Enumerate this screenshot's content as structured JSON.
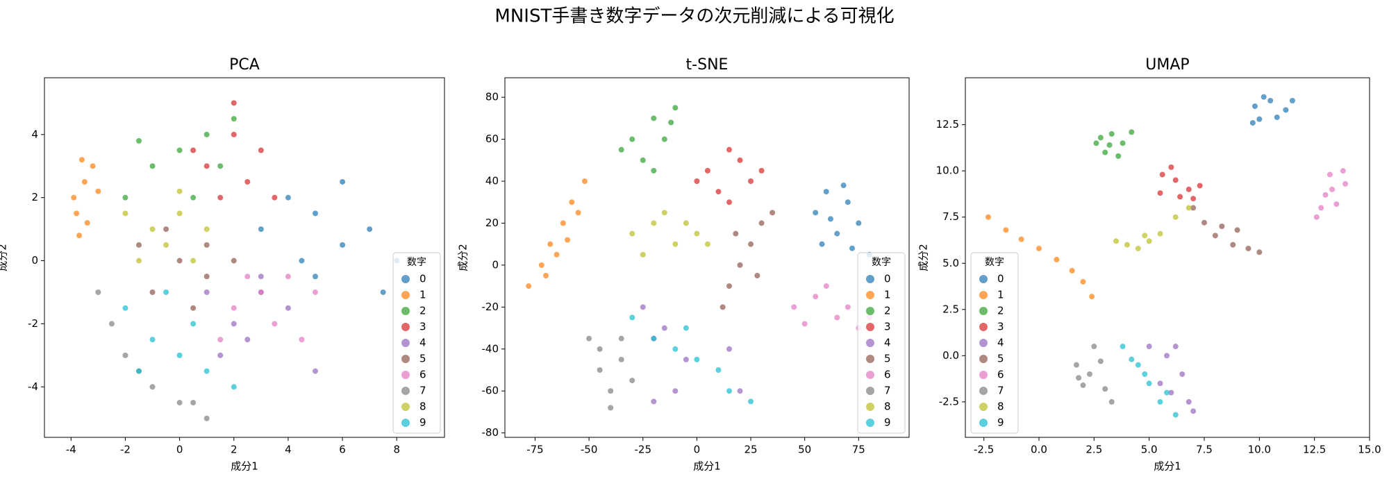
{
  "title": "MNIST手書き数字データの次元削減による可視化",
  "chart_data": [
    {
      "type": "scatter",
      "title": "PCA",
      "xlabel": "成分1",
      "ylabel": "成分2",
      "xlim": [
        -4.98,
        9.76
      ],
      "ylim": [
        -5.6,
        5.8
      ],
      "xticks": [
        -4,
        -2,
        0,
        2,
        4,
        6,
        8
      ],
      "yticks": [
        -4,
        -2,
        0,
        2,
        4
      ],
      "legend": {
        "title": "数字",
        "loc": "lower right"
      },
      "series": [
        {
          "name": "0",
          "color": "#1f77b4",
          "x": [
            3,
            4,
            5,
            6,
            7,
            5,
            8,
            6,
            4.5,
            7.5
          ],
          "y": [
            1,
            2,
            1.5,
            0.5,
            1,
            -0.5,
            0,
            2.5,
            0,
            -1
          ]
        },
        {
          "name": "1",
          "color": "#ff7f0e",
          "x": [
            -3.8,
            -3.5,
            -3.7,
            -3.2,
            -3.9,
            -3.4,
            -3,
            -3.6
          ],
          "y": [
            1.5,
            2.5,
            0.8,
            3,
            2,
            1.2,
            2.2,
            3.2
          ]
        },
        {
          "name": "2",
          "color": "#2ca02c",
          "x": [
            -1,
            0,
            1,
            -2,
            0.5,
            1.5,
            -1.5,
            2
          ],
          "y": [
            3,
            3.5,
            4,
            2,
            2,
            3,
            3.8,
            4.5
          ]
        },
        {
          "name": "3",
          "color": "#d62728",
          "x": [
            1,
            2,
            2.5,
            3,
            1.5,
            2,
            3.5,
            0.5
          ],
          "y": [
            3,
            4,
            2.5,
            3.5,
            2,
            5,
            2,
            3.5
          ]
        },
        {
          "name": "4",
          "color": "#9467bd",
          "x": [
            1,
            2,
            3,
            2.5,
            4,
            1.5,
            3,
            5
          ],
          "y": [
            -1,
            -2,
            -1,
            -2.5,
            -1.5,
            -3,
            -0.5,
            -3.5
          ]
        },
        {
          "name": "5",
          "color": "#8c564b",
          "x": [
            0,
            -1,
            1,
            0.5,
            -0.5,
            2,
            -1.5,
            1
          ],
          "y": [
            0,
            -1,
            0.5,
            -1.5,
            1,
            0,
            0.5,
            -0.5
          ]
        },
        {
          "name": "6",
          "color": "#e377c2",
          "x": [
            2,
            3,
            3.5,
            4,
            2.5,
            1.5,
            5,
            4.5
          ],
          "y": [
            -1.5,
            -1,
            -2,
            -0.5,
            -0.5,
            -2.5,
            -1,
            -2.5
          ]
        },
        {
          "name": "7",
          "color": "#7f7f7f",
          "x": [
            -2,
            -1,
            -2.5,
            0,
            -1.5,
            -3,
            0.5,
            1
          ],
          "y": [
            -3,
            -4,
            -2,
            -4.5,
            -3.5,
            -1,
            -4.5,
            -5
          ]
        },
        {
          "name": "8",
          "color": "#bcbd22",
          "x": [
            -1,
            0,
            -0.5,
            1,
            -2,
            0.5,
            -1.5,
            0
          ],
          "y": [
            1,
            1.5,
            0.5,
            1,
            1.5,
            0,
            0,
            2.2
          ]
        },
        {
          "name": "9",
          "color": "#17becf",
          "x": [
            -1,
            0,
            -2,
            1,
            -0.5,
            0.5,
            -1.5,
            2
          ],
          "y": [
            -2.5,
            -3,
            -1.5,
            -3.5,
            -1,
            -2,
            -3.5,
            -4
          ]
        }
      ]
    },
    {
      "type": "scatter",
      "title": "t-SNE",
      "xlabel": "成分1",
      "ylabel": "成分2",
      "xlim": [
        -89,
        98.4
      ],
      "ylim": [
        -82.1,
        89.3
      ],
      "xticks": [
        -75,
        -50,
        -25,
        0,
        25,
        50,
        75
      ],
      "yticks": [
        -80,
        -60,
        -40,
        -20,
        0,
        20,
        40,
        60,
        80
      ],
      "legend": {
        "title": "数字",
        "loc": "lower right"
      },
      "series": [
        {
          "name": "0",
          "color": "#1f77b4",
          "x": [
            55,
            60,
            70,
            75,
            65,
            58,
            80,
            68,
            72,
            62
          ],
          "y": [
            25,
            35,
            30,
            20,
            15,
            10,
            5,
            38,
            8,
            22
          ]
        },
        {
          "name": "1",
          "color": "#ff7f0e",
          "x": [
            -78,
            -72,
            -68,
            -62,
            -58,
            -52,
            -70,
            -60,
            -55,
            -65
          ],
          "y": [
            -10,
            0,
            10,
            20,
            30,
            40,
            -5,
            12,
            25,
            5
          ]
        },
        {
          "name": "2",
          "color": "#2ca02c",
          "x": [
            -30,
            -20,
            -10,
            -25,
            -15,
            -35,
            -20,
            -12
          ],
          "y": [
            60,
            70,
            75,
            50,
            60,
            55,
            45,
            68
          ]
        },
        {
          "name": "3",
          "color": "#d62728",
          "x": [
            5,
            15,
            25,
            10,
            20,
            30,
            0,
            15
          ],
          "y": [
            45,
            55,
            40,
            35,
            50,
            45,
            40,
            30
          ]
        },
        {
          "name": "4",
          "color": "#9467bd",
          "x": [
            -25,
            -15,
            -20,
            -10,
            15,
            20,
            -5,
            -20
          ],
          "y": [
            -20,
            -30,
            -65,
            -60,
            -40,
            -60,
            -45,
            -35
          ]
        },
        {
          "name": "5",
          "color": "#8c564b",
          "x": [
            20,
            25,
            30,
            15,
            28,
            35,
            18,
            12
          ],
          "y": [
            0,
            10,
            20,
            -10,
            -5,
            25,
            15,
            -20
          ]
        },
        {
          "name": "6",
          "color": "#e377c2",
          "x": [
            45,
            55,
            65,
            75,
            50,
            60,
            70,
            80
          ],
          "y": [
            -20,
            -15,
            -25,
            -30,
            -28,
            -10,
            -20,
            -25
          ]
        },
        {
          "name": "7",
          "color": "#7f7f7f",
          "x": [
            -50,
            -45,
            -35,
            -40,
            -30,
            -45,
            -35,
            -40
          ],
          "y": [
            -35,
            -50,
            -45,
            -60,
            -55,
            -40,
            -35,
            -68
          ]
        },
        {
          "name": "8",
          "color": "#bcbd22",
          "x": [
            -30,
            -20,
            -10,
            0,
            -25,
            -15,
            5,
            -5
          ],
          "y": [
            15,
            20,
            10,
            15,
            5,
            25,
            10,
            20
          ]
        },
        {
          "name": "9",
          "color": "#17becf",
          "x": [
            -30,
            -20,
            -10,
            0,
            10,
            15,
            25,
            -5
          ],
          "y": [
            -25,
            -35,
            -40,
            -45,
            -50,
            -60,
            -65,
            -30
          ]
        }
      ]
    },
    {
      "type": "scatter",
      "title": "UMAP",
      "xlabel": "成分1",
      "ylabel": "成分2",
      "xlim": [
        -3.34,
        15.0
      ],
      "ylim": [
        -4.42,
        15.04
      ],
      "xticks": [
        -2.5,
        {
          "value": 0,
          "label": "0.0"
        },
        2.5,
        {
          "value": 5,
          "label": "5.0"
        },
        7.5,
        {
          "value": 10,
          "label": "10.0"
        },
        12.5,
        {
          "value": 15,
          "label": "15.0"
        }
      ],
      "yticks": [
        -2.5,
        {
          "value": 0,
          "label": "0.0"
        },
        2.5,
        {
          "value": 5,
          "label": "5.0"
        },
        7.5,
        {
          "value": 10,
          "label": "10.0"
        },
        12.5
      ],
      "legend": {
        "title": "数字",
        "loc": "lower left"
      },
      "series": [
        {
          "name": "0",
          "color": "#1f77b4",
          "x": [
            9.8,
            10.5,
            11.2,
            10,
            10.8,
            11.5,
            10.2,
            9.7
          ],
          "y": [
            13.5,
            13.8,
            13.3,
            12.8,
            12.9,
            13.8,
            14,
            12.6
          ]
        },
        {
          "name": "1",
          "color": "#ff7f0e",
          "x": [
            -2.3,
            -1.5,
            -0.8,
            0,
            0.8,
            1.5,
            2,
            2.4
          ],
          "y": [
            7.5,
            6.8,
            6.3,
            5.8,
            5.2,
            4.6,
            4,
            3.2
          ]
        },
        {
          "name": "2",
          "color": "#2ca02c",
          "x": [
            2.8,
            3.3,
            3.8,
            3,
            3.6,
            4.2,
            3.2,
            2.6
          ],
          "y": [
            11.8,
            12,
            11.5,
            11,
            10.8,
            12.1,
            11.4,
            11.5
          ]
        },
        {
          "name": "3",
          "color": "#d62728",
          "x": [
            5.6,
            6.2,
            6.8,
            5.5,
            6.4,
            7.3,
            6,
            7
          ],
          "y": [
            9.8,
            9.5,
            9,
            8.8,
            8.6,
            9.2,
            10.2,
            8.5
          ]
        },
        {
          "name": "4",
          "color": "#9467bd",
          "x": [
            5,
            5.8,
            6.5,
            6.8,
            5.5,
            6.2,
            7,
            6
          ],
          "y": [
            0.5,
            0,
            -1,
            -2.5,
            -1.5,
            0.5,
            -3,
            -2
          ]
        },
        {
          "name": "5",
          "color": "#8c564b",
          "x": [
            7,
            7.5,
            8,
            8.8,
            9.5,
            8.3,
            9,
            10
          ],
          "y": [
            8,
            7.2,
            6.5,
            6,
            5.8,
            7,
            6.8,
            5.6
          ]
        },
        {
          "name": "6",
          "color": "#e377c2",
          "x": [
            12.8,
            13.3,
            13.8,
            13,
            13.5,
            13.9,
            12.6,
            13.2
          ],
          "y": [
            8,
            9,
            10,
            8.7,
            8.2,
            9.3,
            7.5,
            9.8
          ]
        },
        {
          "name": "7",
          "color": "#7f7f7f",
          "x": [
            1.7,
            2.3,
            3,
            2,
            2.8,
            3.3,
            2.5,
            1.8
          ],
          "y": [
            -0.5,
            -1,
            -1.8,
            -1.6,
            -0.3,
            -2.5,
            0.5,
            -1.2
          ]
        },
        {
          "name": "8",
          "color": "#bcbd22",
          "x": [
            4,
            4.8,
            5.5,
            6.2,
            3.5,
            4.5,
            6.8,
            5
          ],
          "y": [
            6,
            6.5,
            6.6,
            7.5,
            6.2,
            5.8,
            8,
            6.2
          ]
        },
        {
          "name": "9",
          "color": "#17becf",
          "x": [
            3.8,
            4.5,
            5,
            5.5,
            6.2,
            4.2,
            5.8,
            4.8
          ],
          "y": [
            0.5,
            -0.5,
            -1.5,
            -2.5,
            -3.2,
            -0.2,
            -2,
            -1
          ]
        }
      ]
    }
  ]
}
